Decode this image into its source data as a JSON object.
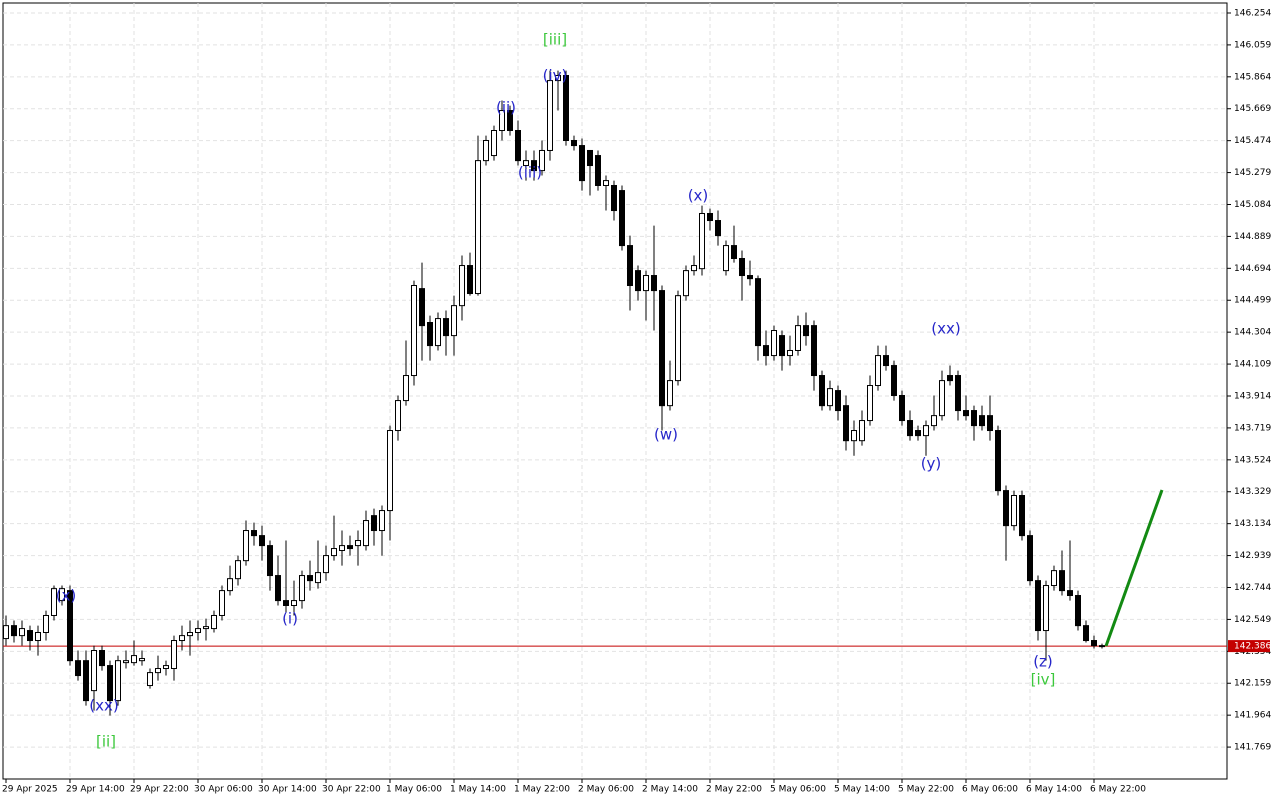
{
  "chart_data": {
    "type": "candlestick",
    "categories": [
      "29 Apr 2025",
      null,
      null,
      null,
      null,
      null,
      null,
      null,
      "29 Apr 14:00",
      null,
      null,
      null,
      null,
      null,
      null,
      null,
      "29 Apr 22:00",
      null,
      null,
      null,
      null,
      null,
      null,
      null,
      "30 Apr 06:00",
      null,
      null,
      null,
      null,
      null,
      null,
      null,
      "30 Apr 14:00",
      null,
      null,
      null,
      null,
      null,
      null,
      null,
      "30 Apr 22:00",
      null,
      null,
      null,
      null,
      null,
      null,
      null,
      "1 May 06:00",
      null,
      null,
      null,
      null,
      null,
      null,
      null,
      "1 May 14:00",
      null,
      null,
      null,
      null,
      null,
      null,
      null,
      "1 May 22:00",
      null,
      null,
      null,
      null,
      null,
      null,
      null,
      "2 May 06:00",
      null,
      null,
      null,
      null,
      null,
      null,
      null,
      "2 May 14:00",
      null,
      null,
      null,
      null,
      null,
      null,
      null,
      "2 May 22:00",
      null,
      null,
      null,
      null,
      null,
      null,
      null,
      "5 May 06:00",
      null,
      null,
      null,
      null,
      null,
      null,
      null,
      "5 May 14:00",
      null,
      null,
      null,
      null,
      null,
      null,
      null,
      "5 May 22:00",
      null,
      null,
      null,
      null,
      null,
      null,
      null,
      "6 May 06:00",
      null,
      null,
      null,
      null,
      null,
      null,
      null,
      "6 May 14:00",
      null,
      null,
      null,
      null,
      null,
      null,
      null,
      "6 May 22:00",
      null
    ],
    "open": [
      142.432,
      142.511,
      142.45,
      142.481,
      142.42,
      142.469,
      142.573,
      142.664,
      142.725,
      142.297,
      142.297,
      142.114,
      142.359,
      142.267,
      142.053,
      142.285,
      142.285,
      142.297,
      142.145,
      142.224,
      142.249,
      142.249,
      142.42,
      142.45,
      142.469,
      142.493,
      142.493,
      142.573,
      142.725,
      142.798,
      142.908,
      143.092,
      143.061,
      143.0,
      142.817,
      142.664,
      142.634,
      142.664,
      142.817,
      142.774,
      142.835,
      142.939,
      142.97,
      143.0,
      143.0,
      143.0,
      143.183,
      143.092,
      143.214,
      143.703,
      143.886,
      144.039,
      144.57,
      144.363,
      144.222,
      144.387,
      144.283,
      144.466,
      144.711,
      144.54,
      145.352,
      145.383,
      145.536,
      145.658,
      145.536,
      145.322,
      145.352,
      145.291,
      145.414,
      145.841,
      145.872,
      145.475,
      145.444,
      145.414,
      145.383,
      145.2,
      145.2,
      145.169,
      144.833,
      144.68,
      144.558,
      144.65,
      144.558,
      143.855,
      144.008,
      144.527,
      144.68,
      144.692,
      145.029,
      144.986,
      144.68,
      144.833,
      144.754,
      144.65,
      144.631,
      144.222,
      144.161,
      144.283,
      144.161,
      144.192,
      144.344,
      144.344,
      144.039,
      143.855,
      143.947,
      143.855,
      143.641,
      143.641,
      143.764,
      143.978,
      144.161,
      144.1,
      143.917,
      143.764,
      143.703,
      143.672,
      143.733,
      143.794,
      144.039,
      144.039,
      143.825,
      143.825,
      143.794,
      143.794,
      143.703,
      143.336,
      143.122,
      143.306,
      143.061,
      142.786,
      142.481,
      142.756,
      142.847,
      142.725,
      142.695,
      142.511,
      142.42,
      142.389
    ],
    "high": [
      142.573,
      142.542,
      142.542,
      142.511,
      142.511,
      142.603,
      142.756,
      142.756,
      142.756,
      142.359,
      142.359,
      142.389,
      142.389,
      142.297,
      142.328,
      142.359,
      142.42,
      142.359,
      142.249,
      142.328,
      142.297,
      142.45,
      142.511,
      142.542,
      142.542,
      142.554,
      142.603,
      142.756,
      142.878,
      142.939,
      143.153,
      143.14,
      143.122,
      143.031,
      142.939,
      143.031,
      142.786,
      142.847,
      142.908,
      143.031,
      143.0,
      143.183,
      143.092,
      143.061,
      143.092,
      143.214,
      143.226,
      143.245,
      143.733,
      143.917,
      144.253,
      144.619,
      144.729,
      144.405,
      144.424,
      144.436,
      144.527,
      144.772,
      144.79,
      145.505,
      145.505,
      145.566,
      145.719,
      145.688,
      145.597,
      145.414,
      145.414,
      145.475,
      145.902,
      145.902,
      145.902,
      145.505,
      145.487,
      145.414,
      145.414,
      145.261,
      145.23,
      145.2,
      144.894,
      144.711,
      144.68,
      144.955,
      144.589,
      144.13,
      144.558,
      144.711,
      144.772,
      145.077,
      145.059,
      145.047,
      144.864,
      144.955,
      144.803,
      144.741,
      144.65,
      144.314,
      144.344,
      144.314,
      144.283,
      144.405,
      144.424,
      144.375,
      144.069,
      144.008,
      143.978,
      143.917,
      143.764,
      143.825,
      144.039,
      144.222,
      144.222,
      144.13,
      143.947,
      143.825,
      143.733,
      143.764,
      143.917,
      144.069,
      144.1,
      144.069,
      143.917,
      143.855,
      143.855,
      143.917,
      143.733,
      143.367,
      143.336,
      143.336,
      143.092,
      142.817,
      142.786,
      142.878,
      142.97,
      143.031,
      142.725,
      142.542,
      142.45,
      142.401
    ],
    "low": [
      142.389,
      142.408,
      142.389,
      142.359,
      142.328,
      142.42,
      142.542,
      142.634,
      142.267,
      142.175,
      142.022,
      141.992,
      142.236,
      141.961,
      142.022,
      142.249,
      142.267,
      142.267,
      142.126,
      142.175,
      142.206,
      142.175,
      142.359,
      142.328,
      142.42,
      142.42,
      142.469,
      142.542,
      142.695,
      142.756,
      142.878,
      143.0,
      142.908,
      142.725,
      142.634,
      142.591,
      142.573,
      142.615,
      142.725,
      142.737,
      142.786,
      142.908,
      142.878,
      142.939,
      142.878,
      142.97,
      143.0,
      142.939,
      143.031,
      143.641,
      143.855,
      143.978,
      144.13,
      144.13,
      144.192,
      144.161,
      144.161,
      144.375,
      144.527,
      144.527,
      145.322,
      145.352,
      145.475,
      145.505,
      145.322,
      145.23,
      145.23,
      145.261,
      145.352,
      145.658,
      145.444,
      145.414,
      145.169,
      145.139,
      145.169,
      145.047,
      144.986,
      144.803,
      144.436,
      144.497,
      144.375,
      144.314,
      143.703,
      143.825,
      143.978,
      144.497,
      144.65,
      144.65,
      144.925,
      144.833,
      144.65,
      144.729,
      144.497,
      144.589,
      144.13,
      144.1,
      144.13,
      144.069,
      144.1,
      144.161,
      144.222,
      143.947,
      143.825,
      143.825,
      143.764,
      143.581,
      143.549,
      143.611,
      143.733,
      143.947,
      144.069,
      143.886,
      143.733,
      143.641,
      143.641,
      143.549,
      143.703,
      143.764,
      143.978,
      143.764,
      143.764,
      143.641,
      143.703,
      143.641,
      143.306,
      142.908,
      143.092,
      143.031,
      142.756,
      142.42,
      142.297,
      142.725,
      142.695,
      142.664,
      142.481,
      142.408,
      142.371,
      142.371
    ],
    "close": [
      142.511,
      142.45,
      142.493,
      142.42,
      142.469,
      142.573,
      142.737,
      142.737,
      142.297,
      142.206,
      142.053,
      142.359,
      142.267,
      142.053,
      142.297,
      142.297,
      142.328,
      142.31,
      142.224,
      142.249,
      142.267,
      142.42,
      142.45,
      142.469,
      142.493,
      142.505,
      142.573,
      142.725,
      142.798,
      142.908,
      143.092,
      143.061,
      143.0,
      142.817,
      142.664,
      142.634,
      142.664,
      142.817,
      142.786,
      142.835,
      142.939,
      142.982,
      143.0,
      142.982,
      143.031,
      143.153,
      143.092,
      143.214,
      143.703,
      143.886,
      144.039,
      144.589,
      144.344,
      144.222,
      144.387,
      144.283,
      144.466,
      144.711,
      144.54,
      145.352,
      145.475,
      145.536,
      145.658,
      145.536,
      145.352,
      145.352,
      145.291,
      145.414,
      145.841,
      145.872,
      145.475,
      145.444,
      145.23,
      145.322,
      145.2,
      145.23,
      145.047,
      144.833,
      144.589,
      144.558,
      144.65,
      144.558,
      143.855,
      144.008,
      144.527,
      144.68,
      144.711,
      145.029,
      144.986,
      144.894,
      144.833,
      144.754,
      144.65,
      144.631,
      144.222,
      144.161,
      144.314,
      144.161,
      144.192,
      144.344,
      144.283,
      144.039,
      143.855,
      143.959,
      143.825,
      143.641,
      143.703,
      143.764,
      143.978,
      144.161,
      144.1,
      143.917,
      143.764,
      143.672,
      143.672,
      143.733,
      143.794,
      144.008,
      144.008,
      143.825,
      143.794,
      143.733,
      143.733,
      143.703,
      143.336,
      143.122,
      143.306,
      143.061,
      142.786,
      142.481,
      142.756,
      142.847,
      142.725,
      142.695,
      142.511,
      142.42,
      142.389,
      142.386
    ],
    "colors": {
      "up": "#ffffff",
      "down": "#000000",
      "wick": "#000000"
    },
    "ylim": [
      141.574,
      146.315
    ],
    "yticks": [
      146.254,
      146.059,
      145.864,
      145.669,
      145.474,
      145.279,
      145.084,
      144.889,
      144.694,
      144.499,
      144.304,
      144.109,
      143.914,
      143.719,
      143.524,
      143.329,
      143.134,
      142.939,
      142.744,
      142.549,
      142.354,
      142.159,
      141.964,
      141.769
    ],
    "grid": true,
    "current_price": {
      "value": 142.386,
      "color": "#c40000"
    },
    "annotations": [
      {
        "text": "(x)",
        "color": "#2626c9"
      },
      {
        "text": "(xx)",
        "color": "#2626c9"
      },
      {
        "text": "[ii]",
        "color": "#3cc83c"
      },
      {
        "text": "(i)",
        "color": "#2626c9"
      },
      {
        "text": "(ii)",
        "color": "#2626c9"
      },
      {
        "text": "(iii)",
        "color": "#2626c9"
      },
      {
        "text": "(iv)",
        "color": "#2626c9"
      },
      {
        "text": "[iii]",
        "color": "#3cc83c"
      },
      {
        "text": "(w)",
        "color": "#2626c9"
      },
      {
        "text": "(x)",
        "color": "#2626c9"
      },
      {
        "text": "(y)",
        "color": "#2626c9"
      },
      {
        "text": "(xx)",
        "color": "#2626c9"
      },
      {
        "text": "(z)",
        "color": "#2626c9"
      },
      {
        "text": "[iv]",
        "color": "#3cc83c"
      }
    ]
  }
}
